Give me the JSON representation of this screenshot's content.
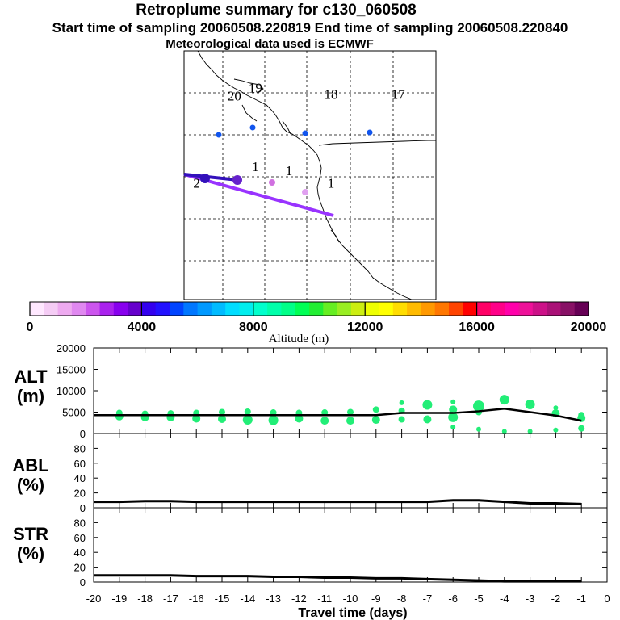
{
  "titles": {
    "main": "Retroplume summary for c130_060508",
    "sampling": "Start time of sampling 20060508.220819     End time of sampling 20060508.220840",
    "met": "Meteorological data used is ECMWF"
  },
  "colors": {
    "path": "#9933ff",
    "points": "#22ee77",
    "line": "#000000",
    "marker_dark": "#3311bb",
    "marker_blue": "#1155ee",
    "marker_pink": "#d070e0",
    "marker_light": "#e0a0f0"
  },
  "map": {
    "day_labels": [
      {
        "text": "20",
        "lon": -136.0,
        "lat": 66.0
      },
      {
        "text": "19",
        "lon": -133.5,
        "lat": 67.0
      },
      {
        "text": "18",
        "lon": -124.5,
        "lat": 66.2
      },
      {
        "text": "17",
        "lon": -116.5,
        "lat": 66.2
      },
      {
        "text": "2",
        "lon": -140.5,
        "lat": 55.5
      },
      {
        "text": "1",
        "lon": -133.5,
        "lat": 57.5
      },
      {
        "text": "1",
        "lon": -129.5,
        "lat": 57.0
      },
      {
        "text": "1",
        "lon": -124.5,
        "lat": 55.5
      }
    ]
  },
  "colorbar": {
    "label": "Altitude (m)",
    "tick_labels": [
      "0",
      "4000",
      "8000",
      "12000",
      "16000",
      "20000"
    ],
    "colors": [
      "#ffe8ff",
      "#f5ccf5",
      "#eeaaf0",
      "#e088f0",
      "#cc55ee",
      "#aa22ee",
      "#8800ee",
      "#6600cc",
      "#3300ee",
      "#2211ff",
      "#0044ff",
      "#0077ff",
      "#0099ff",
      "#00bbff",
      "#00ddff",
      "#00eeee",
      "#00ffcc",
      "#00ffaa",
      "#00ff88",
      "#00ff55",
      "#22ee33",
      "#66ee22",
      "#99ee22",
      "#ccee11",
      "#eeff00",
      "#ffff00",
      "#ffdd00",
      "#ffbb00",
      "#ff9900",
      "#ff7700",
      "#ff4400",
      "#ff0000",
      "#ff0066",
      "#ff0088",
      "#ff00aa",
      "#ee1199",
      "#cc1188",
      "#aa1177",
      "#881166",
      "#660055"
    ]
  },
  "chart_data": [
    {
      "type": "scatter",
      "panel": "ALT",
      "ylabel": "ALT\n(m)",
      "ylim": [
        0,
        20000
      ],
      "y_ticks": [
        "0",
        "5000",
        "10000",
        "15000",
        "20000"
      ],
      "xlim": [
        -20,
        0
      ],
      "median_x": [
        -20,
        -19,
        -18,
        -17,
        -16,
        -15,
        -14,
        -13,
        -12,
        -11,
        -10,
        -9,
        -8,
        -7,
        -6,
        -5,
        -4,
        -3,
        -2,
        -1
      ],
      "median_y": [
        4300,
        4300,
        4300,
        4300,
        4300,
        4300,
        4300,
        4300,
        4300,
        4300,
        4300,
        4300,
        4800,
        4800,
        4800,
        5200,
        5800,
        5000,
        4200,
        3000
      ],
      "points": [
        {
          "x": -19,
          "y": 4000,
          "s": 5
        },
        {
          "x": -19,
          "y": 4800,
          "s": 4
        },
        {
          "x": -18,
          "y": 3800,
          "s": 5
        },
        {
          "x": -18,
          "y": 4600,
          "s": 4
        },
        {
          "x": -17,
          "y": 3800,
          "s": 5
        },
        {
          "x": -17,
          "y": 4700,
          "s": 4
        },
        {
          "x": -16,
          "y": 3500,
          "s": 5
        },
        {
          "x": -16,
          "y": 4800,
          "s": 4
        },
        {
          "x": -15,
          "y": 3400,
          "s": 5
        },
        {
          "x": -15,
          "y": 5000,
          "s": 4
        },
        {
          "x": -14,
          "y": 3200,
          "s": 6
        },
        {
          "x": -14,
          "y": 5100,
          "s": 4
        },
        {
          "x": -13,
          "y": 3100,
          "s": 6
        },
        {
          "x": -13,
          "y": 4900,
          "s": 4
        },
        {
          "x": -12,
          "y": 3500,
          "s": 5
        },
        {
          "x": -12,
          "y": 4800,
          "s": 4
        },
        {
          "x": -11,
          "y": 3000,
          "s": 5
        },
        {
          "x": -11,
          "y": 4900,
          "s": 4
        },
        {
          "x": -10,
          "y": 3000,
          "s": 5
        },
        {
          "x": -10,
          "y": 5000,
          "s": 4
        },
        {
          "x": -9,
          "y": 3200,
          "s": 5
        },
        {
          "x": -9,
          "y": 5600,
          "s": 4
        },
        {
          "x": -8,
          "y": 3300,
          "s": 4
        },
        {
          "x": -8,
          "y": 5300,
          "s": 4
        },
        {
          "x": -8,
          "y": 7200,
          "s": 3
        },
        {
          "x": -7,
          "y": 3300,
          "s": 5
        },
        {
          "x": -7,
          "y": 6700,
          "s": 6
        },
        {
          "x": -6,
          "y": 1500,
          "s": 3
        },
        {
          "x": -6,
          "y": 3800,
          "s": 6
        },
        {
          "x": -6,
          "y": 5600,
          "s": 5
        },
        {
          "x": -6,
          "y": 7400,
          "s": 3
        },
        {
          "x": -5,
          "y": 1000,
          "s": 3
        },
        {
          "x": -5,
          "y": 5000,
          "s": 4
        },
        {
          "x": -5,
          "y": 6400,
          "s": 7
        },
        {
          "x": -4,
          "y": 500,
          "s": 3
        },
        {
          "x": -4,
          "y": 7900,
          "s": 6
        },
        {
          "x": -3,
          "y": 500,
          "s": 3
        },
        {
          "x": -3,
          "y": 6800,
          "s": 6
        },
        {
          "x": -2,
          "y": 800,
          "s": 3
        },
        {
          "x": -2,
          "y": 4700,
          "s": 5
        },
        {
          "x": -2,
          "y": 6000,
          "s": 3
        },
        {
          "x": -1,
          "y": 1200,
          "s": 4
        },
        {
          "x": -1,
          "y": 3600,
          "s": 5
        },
        {
          "x": -1,
          "y": 4300,
          "s": 4
        }
      ]
    },
    {
      "type": "line",
      "panel": "ABL",
      "ylabel": "ABL\n(%)",
      "ylim": [
        0,
        100
      ],
      "y_ticks": [
        "0",
        "20",
        "40",
        "60",
        "80"
      ],
      "x": [
        -20,
        -19,
        -18,
        -17,
        -16,
        -15,
        -14,
        -13,
        -12,
        -11,
        -10,
        -9,
        -8,
        -7,
        -6,
        -5,
        -4,
        -3,
        -2,
        -1
      ],
      "values": [
        8,
        8,
        9,
        9,
        8,
        8,
        8,
        8,
        8,
        8,
        8,
        8,
        8,
        8,
        10,
        10,
        8,
        6,
        6,
        5
      ]
    },
    {
      "type": "line",
      "panel": "STR",
      "ylabel": "STR\n(%)",
      "ylim": [
        0,
        100
      ],
      "y_ticks": [
        "0",
        "20",
        "40",
        "60",
        "80"
      ],
      "x": [
        -20,
        -19,
        -18,
        -17,
        -16,
        -15,
        -14,
        -13,
        -12,
        -11,
        -10,
        -9,
        -8,
        -7,
        -6,
        -5,
        -4,
        -3,
        -2,
        -1
      ],
      "values": [
        9,
        9,
        9,
        9,
        8,
        8,
        8,
        7,
        7,
        6,
        6,
        5,
        5,
        4,
        3,
        2,
        1,
        1,
        1,
        1
      ],
      "xlabel": "Travel time (days)",
      "x_ticks": [
        "-20",
        "-19",
        "-18",
        "-17",
        "-16",
        "-15",
        "-14",
        "-13",
        "-12",
        "-11",
        "-10",
        "-9",
        "-8",
        "-7",
        "-6",
        "-5",
        "-4",
        "-3",
        "-2",
        "-1",
        "0"
      ]
    }
  ]
}
